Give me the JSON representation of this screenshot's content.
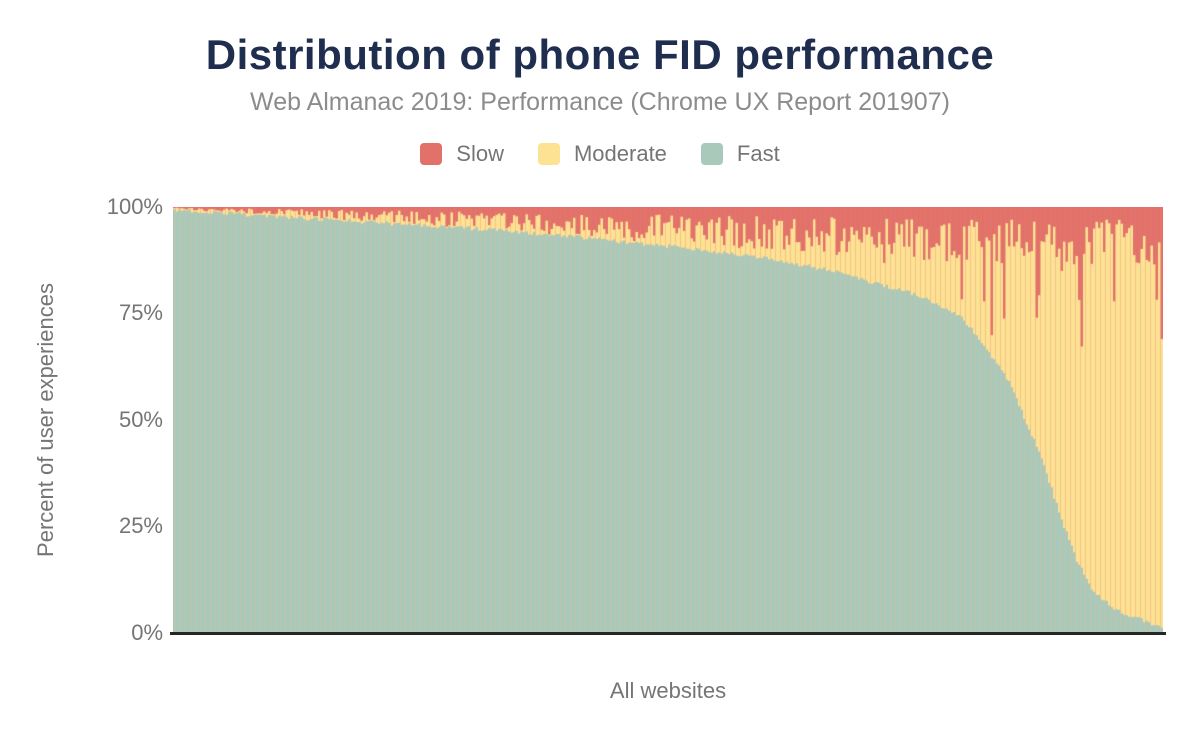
{
  "title": "Distribution of phone FID performance",
  "subtitle": "Web Almanac 2019: Performance (Chrome UX Report 201907)",
  "colors": {
    "title": "#1f2d4f",
    "subtitle": "#8c8c8c",
    "axis_text": "#757575",
    "axis_line": "#262626",
    "background": "#ffffff",
    "slow": "#e2716a",
    "moderate": "#fde293",
    "fast": "#a9c9bb"
  },
  "chart_data": {
    "type": "bar",
    "stacked": true,
    "percent_stack": true,
    "title": "Distribution of phone FID performance",
    "subtitle": "Web Almanac 2019: Performance (Chrome UX Report 201907)",
    "xlabel": "All websites",
    "ylabel": "Percent of user experiences",
    "ylim": [
      0,
      100
    ],
    "yticks": [
      "100%",
      "75%",
      "50%",
      "25%",
      "0%"
    ],
    "grid": false,
    "x_description": "Thousands of websites sorted descending by percent of fast FID user experiences; x positions expressed as fraction 0-1 of all websites",
    "legend": {
      "position": "top",
      "entries": [
        {
          "label": "Slow",
          "color": "#e2716a"
        },
        {
          "label": "Moderate",
          "color": "#fde293"
        },
        {
          "label": "Fast",
          "color": "#a9c9bb"
        }
      ]
    },
    "series_order_bottom_to_top": [
      "Fast",
      "Moderate",
      "Slow"
    ],
    "fast_pct_curve": [
      [
        0,
        99.4
      ],
      [
        0.05,
        98.6
      ],
      [
        0.1,
        97.8
      ],
      [
        0.15,
        97.1
      ],
      [
        0.2,
        96.4
      ],
      [
        0.25,
        95.7
      ],
      [
        0.3,
        95.0
      ],
      [
        0.35,
        94.1
      ],
      [
        0.4,
        93.1
      ],
      [
        0.45,
        92.0
      ],
      [
        0.5,
        90.8
      ],
      [
        0.55,
        89.4
      ],
      [
        0.6,
        87.9
      ],
      [
        0.64,
        86.2
      ],
      [
        0.68,
        84.4
      ],
      [
        0.7,
        82.8
      ],
      [
        0.72,
        81.5
      ],
      [
        0.745,
        80.0
      ],
      [
        0.78,
        76.5
      ],
      [
        0.8,
        73.5
      ],
      [
        0.828,
        65.0
      ],
      [
        0.845,
        59.0
      ],
      [
        0.863,
        49.5
      ],
      [
        0.88,
        40.0
      ],
      [
        0.896,
        28.5
      ],
      [
        0.913,
        17.5
      ],
      [
        0.929,
        10.5
      ],
      [
        0.947,
        6.5
      ],
      [
        0.964,
        4.5
      ],
      [
        0.98,
        3.2
      ],
      [
        1,
        1.3
      ]
    ],
    "slow_pct_base_curve": [
      [
        0,
        0.4
      ],
      [
        0.1,
        1.2
      ],
      [
        0.2,
        2.2
      ],
      [
        0.3,
        3.2
      ],
      [
        0.4,
        4.2
      ],
      [
        0.5,
        5.2
      ],
      [
        0.6,
        6.2
      ],
      [
        0.7,
        7.2
      ],
      [
        0.8,
        8.0
      ],
      [
        0.9,
        8.2
      ],
      [
        1,
        8.5
      ]
    ],
    "last_bar": {
      "fast_pct": 1.2,
      "slow_pct": 31
    },
    "render": {
      "bar_count": 396,
      "noise_seed": 13,
      "slow_noise_factor": [
        0.35,
        1.3
      ],
      "spike_prob_curve": [
        [
          0,
          0
        ],
        [
          0.25,
          0.02
        ],
        [
          0.45,
          0.05
        ],
        [
          0.6,
          0.09
        ],
        [
          0.72,
          0.13
        ],
        [
          0.85,
          0.15
        ],
        [
          1,
          0.15
        ]
      ],
      "spike_strength": [
        0.3,
        0.6
      ],
      "spike_cap_pct": 40,
      "fast_jitter_pct": 1.0,
      "min_moderate_pct": 0.3
    }
  }
}
